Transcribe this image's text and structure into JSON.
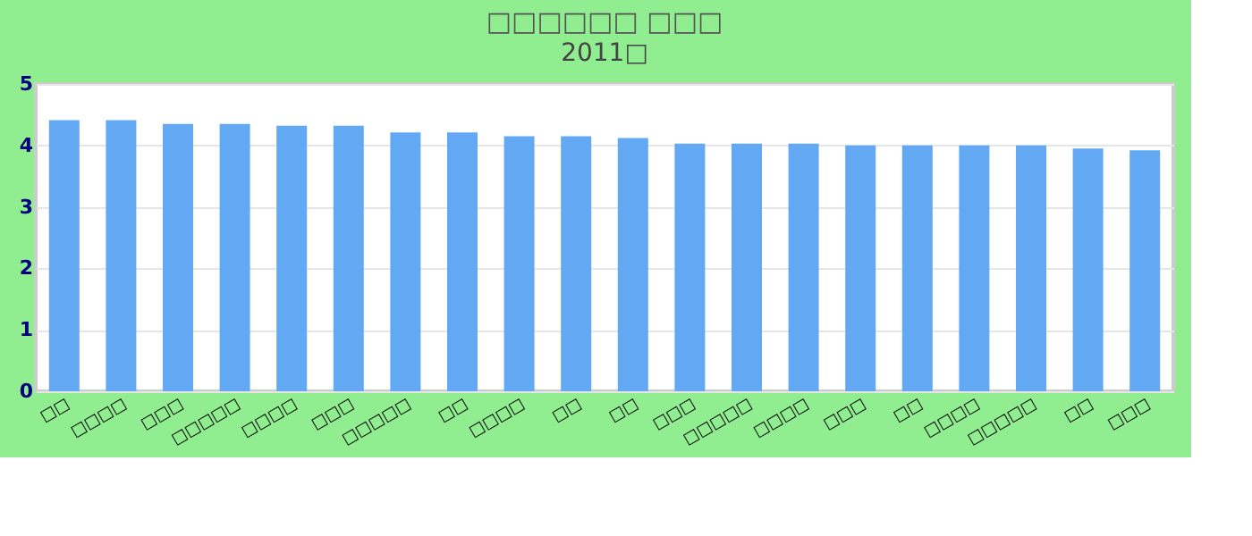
{
  "chart_data": {
    "type": "bar",
    "title": "□□□□□□ □□□",
    "subtitle": "2011□",
    "categories": [
      "□□",
      "□□□□",
      "□□□",
      "□□□□□",
      "□□□□",
      "□□□",
      "□□□□□",
      "□□",
      "□□□□",
      "□□",
      "□□",
      "□□□",
      "□□□□□",
      "□□□□",
      "□□□",
      "□□",
      "□□□□",
      "□□□□□",
      "□□",
      "□□□"
    ],
    "values": [
      4.41,
      4.41,
      4.35,
      4.35,
      4.32,
      4.32,
      4.21,
      4.21,
      4.15,
      4.15,
      4.12,
      4.03,
      4.03,
      4.03,
      4.0,
      4.0,
      4.0,
      4.0,
      3.95,
      3.92
    ],
    "color": "#62a8f3",
    "ylim": [
      0,
      5
    ],
    "yticks": [
      0,
      1,
      2,
      3,
      4,
      5
    ],
    "grid": "y"
  }
}
